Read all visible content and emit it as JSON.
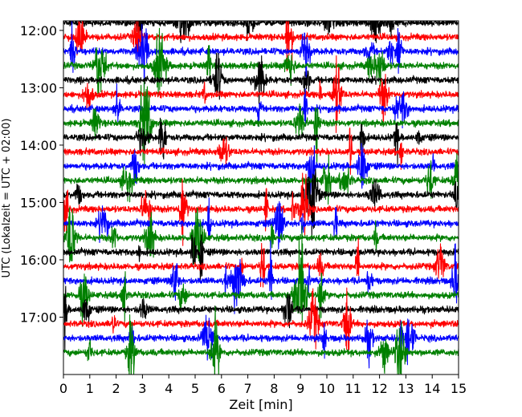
{
  "chart_data": {
    "type": "line",
    "title": "",
    "xlabel": "Zeit  [min]",
    "ylabel": "UTC (Lokalzeit = UTC + 02:00)",
    "xlim": [
      0,
      15
    ],
    "ylim_time": [
      "18:00",
      "11:50"
    ],
    "x_ticks": [
      "0",
      "1",
      "2",
      "3",
      "4",
      "5",
      "6",
      "7",
      "8",
      "9",
      "10",
      "11",
      "12",
      "13",
      "14",
      "15"
    ],
    "y_ticks": [
      "12:00",
      "13:00",
      "14:00",
      "15:00",
      "16:00",
      "17:00"
    ],
    "trace_interval_minutes": 15,
    "trace_start": "11:52",
    "trace_count": 24,
    "series_color_cycle": [
      "#000000",
      "#ff0000",
      "#0000ff",
      "#008000"
    ],
    "grid": false,
    "legend": "none"
  }
}
